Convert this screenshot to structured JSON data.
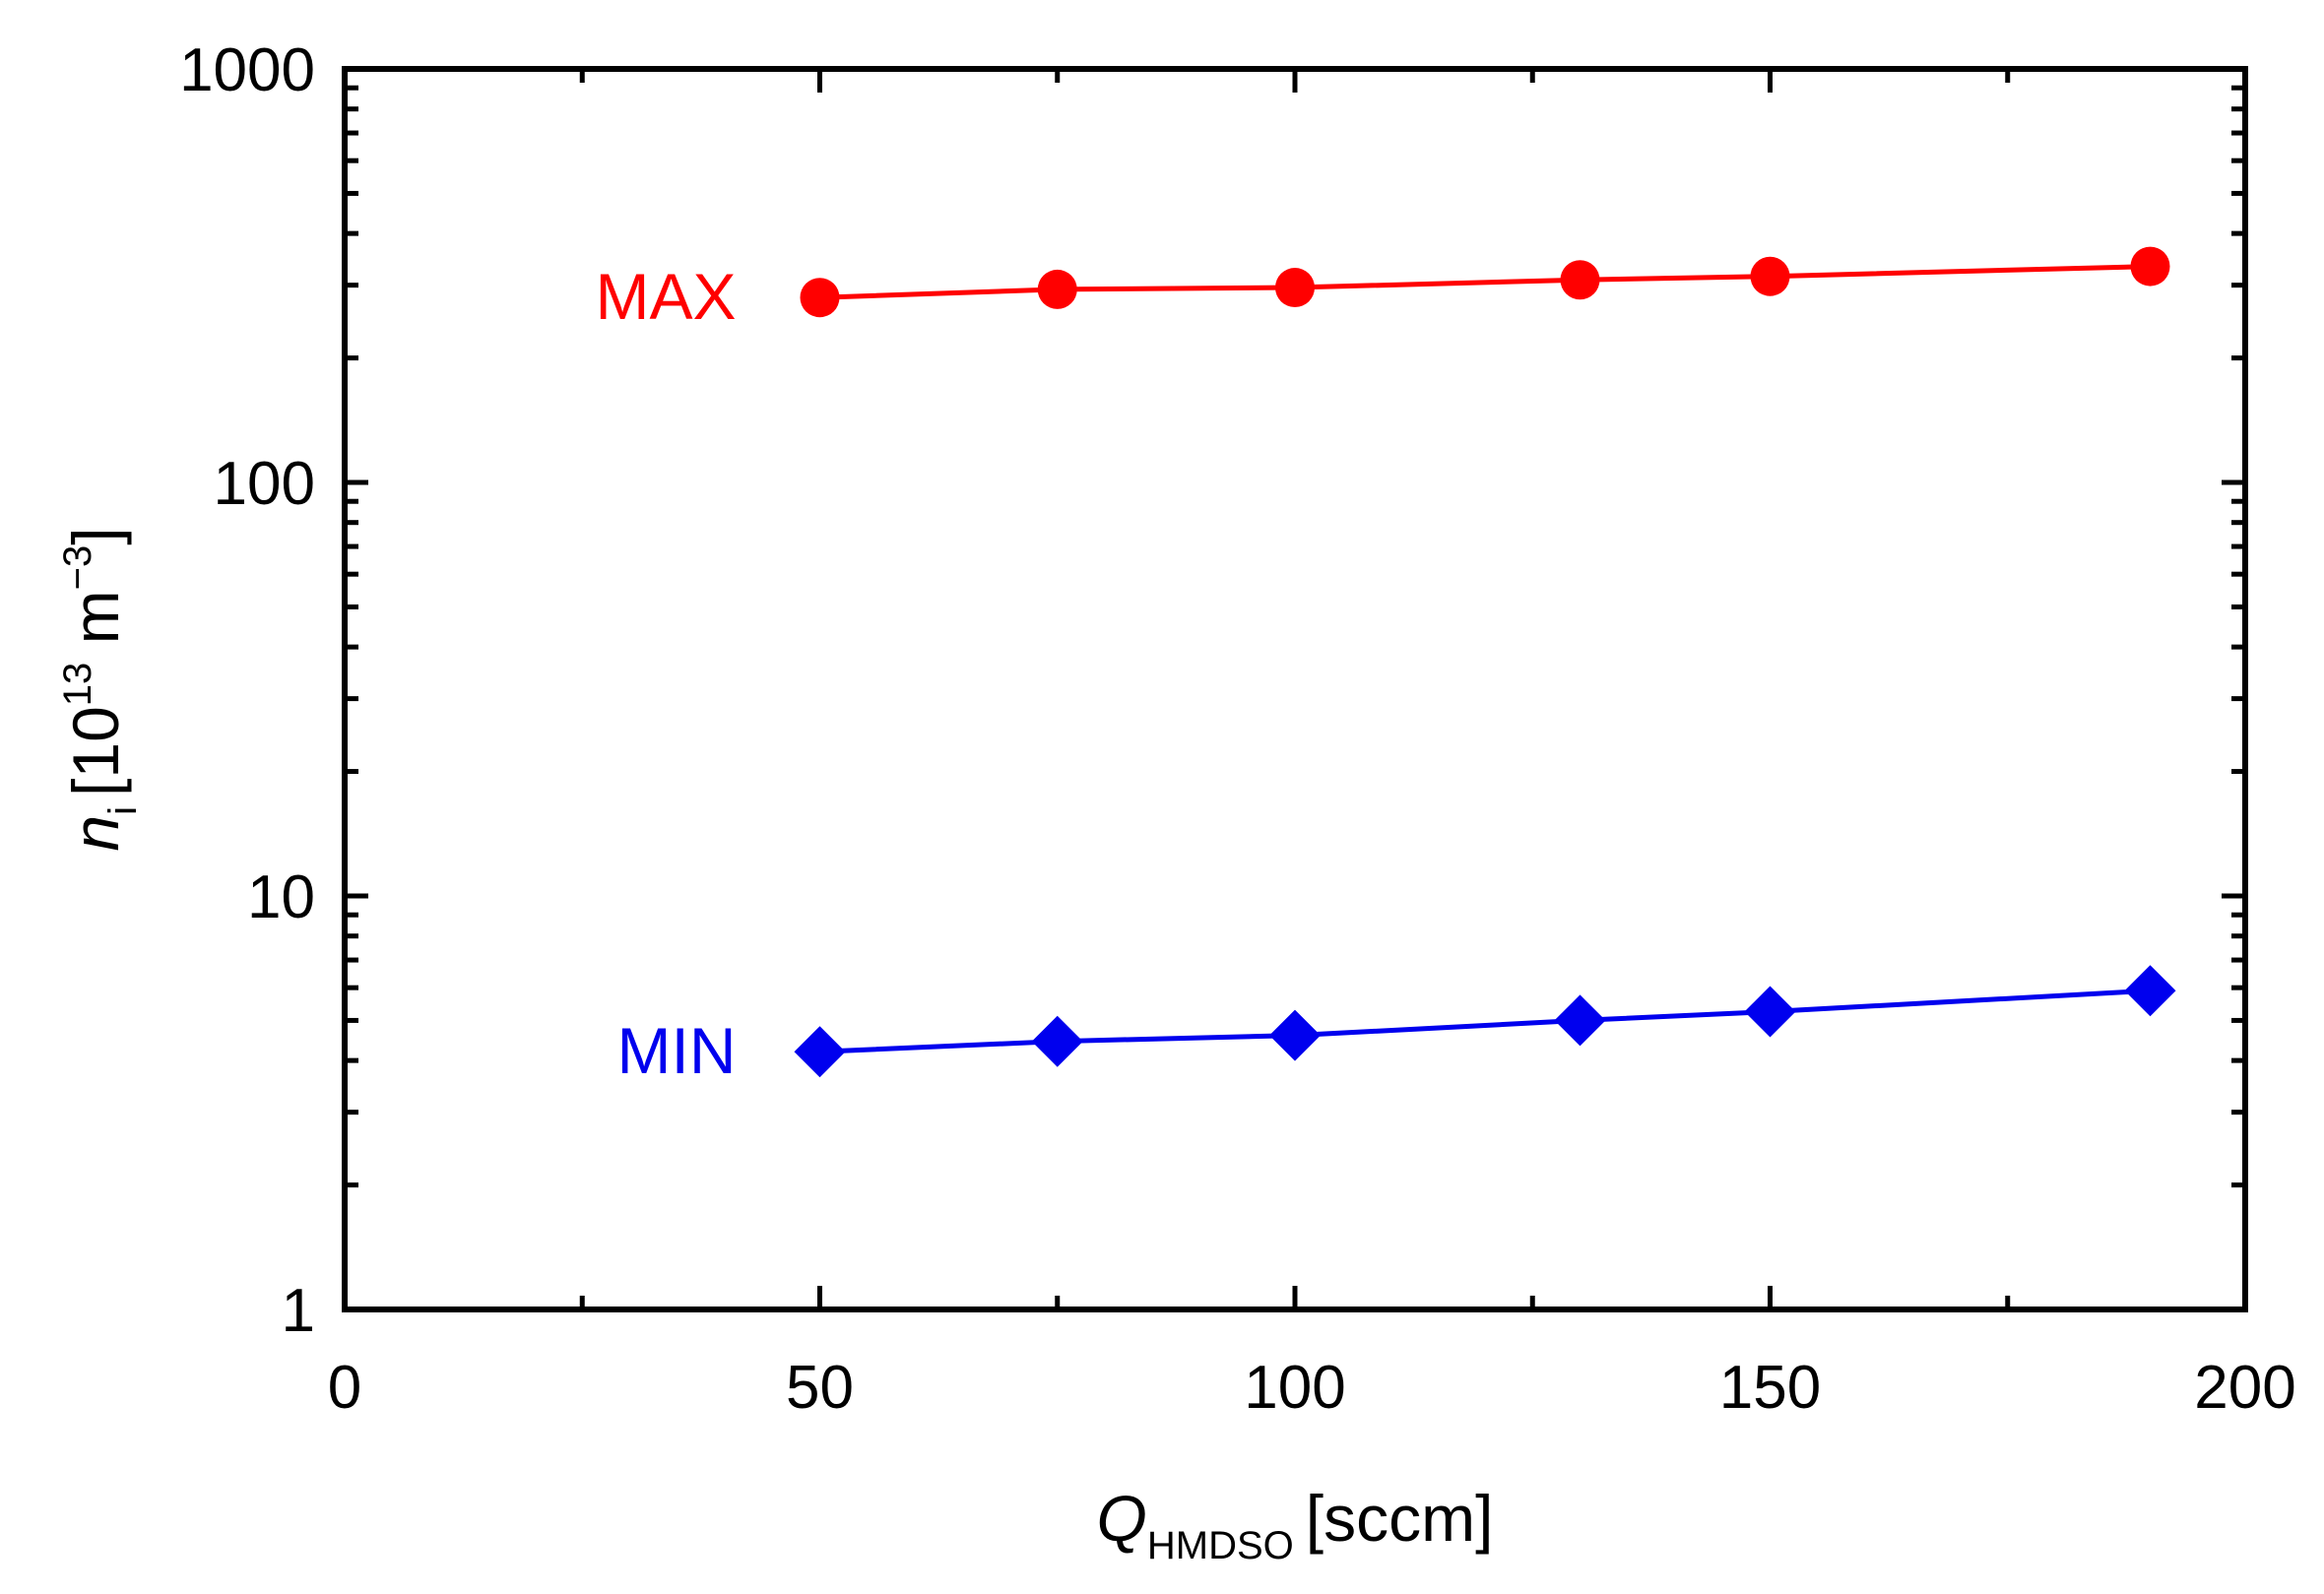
{
  "chart_data": {
    "type": "line",
    "title": "",
    "xlabel": {
      "main": "Q",
      "subscript": "HMDSO",
      "unit": "[sccm]"
    },
    "ylabel": {
      "main": "n",
      "subscript": "i",
      "unit_prefix": "[10",
      "unit_exponent": "13",
      "unit_mid": " m",
      "unit_exponent2": "−3",
      "unit_suffix": "]"
    },
    "x": [
      50,
      75,
      100,
      130,
      150,
      190
    ],
    "xlim": [
      0,
      200
    ],
    "ylim": [
      1,
      1000
    ],
    "yscale": "log",
    "xticks": [
      0,
      50,
      100,
      150,
      200
    ],
    "xtick_labels": [
      "0",
      "50",
      "100",
      "150",
      "200"
    ],
    "yticks": [
      1,
      10,
      100,
      1000
    ],
    "ytick_labels": [
      "1",
      "10",
      "100",
      "1000"
    ],
    "grid": false,
    "legend": "none",
    "series": [
      {
        "name": "MAX",
        "color": "#ff0000",
        "marker": "circle",
        "values": [
          280,
          293,
          296,
          309,
          315,
          333
        ]
      },
      {
        "name": "MIN",
        "color": "#0000ee",
        "marker": "diamond",
        "values": [
          4.2,
          4.45,
          4.6,
          5.0,
          5.25,
          5.9
        ]
      }
    ]
  }
}
